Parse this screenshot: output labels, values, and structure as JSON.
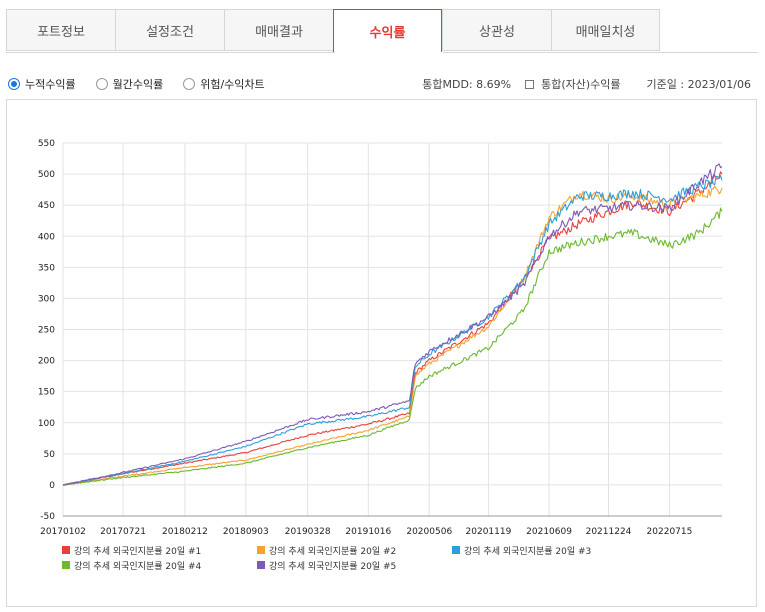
{
  "tabs": [
    {
      "label": "포트정보",
      "active": false
    },
    {
      "label": "설정조건",
      "active": false
    },
    {
      "label": "매매결과",
      "active": false
    },
    {
      "label": "수익률",
      "active": true
    },
    {
      "label": "상관성",
      "active": false
    },
    {
      "label": "매매일치성",
      "active": false
    }
  ],
  "options": {
    "radios": [
      {
        "label": "누적수익률",
        "checked": true
      },
      {
        "label": "월간수익률",
        "checked": false
      },
      {
        "label": "위험/수익차트",
        "checked": false
      }
    ],
    "mdd": "통합MDD: 8.69%",
    "asset_checkbox_label": "통합(자산)수익률",
    "asset_checkbox_checked": false,
    "base_date": "기준일 : 2023/01/06"
  },
  "colors": {
    "accent": "#e8382f",
    "radio": "#1a73e8",
    "series": [
      "#e8413c",
      "#f5a233",
      "#2c9fd9",
      "#6cb92e",
      "#7e5ab5"
    ]
  },
  "chart_data": {
    "type": "line",
    "ylim": [
      -50,
      550
    ],
    "yticks": [
      -50,
      0,
      50,
      100,
      150,
      200,
      250,
      300,
      350,
      400,
      450,
      500,
      550
    ],
    "xticks": [
      "20170102",
      "20170721",
      "20180212",
      "20180903",
      "20190328",
      "20191016",
      "20200506",
      "20201119",
      "20210609",
      "20211224",
      "20220715"
    ],
    "grid": true,
    "legend_position": "bottom",
    "x_points": [
      "20170102",
      "20170721",
      "20180212",
      "20180903",
      "20190328",
      "20191016",
      "20200301",
      "20200320",
      "20200506",
      "20201119",
      "20210315",
      "20210609",
      "20210915",
      "20211224",
      "20220315",
      "20220715",
      "20221020",
      "20230106"
    ],
    "series": [
      {
        "name": "강의 추세 외국인지분률 20일 #1",
        "values": [
          0,
          18,
          35,
          52,
          80,
          98,
          115,
          180,
          200,
          260,
          330,
          395,
          420,
          440,
          455,
          440,
          470,
          500
        ]
      },
      {
        "name": "강의 추세 외국인지분률 20일 #2",
        "values": [
          0,
          14,
          28,
          40,
          65,
          88,
          110,
          175,
          195,
          255,
          330,
          430,
          470,
          460,
          465,
          450,
          465,
          478
        ]
      },
      {
        "name": "강의 추세 외국인지분률 20일 #3",
        "values": [
          0,
          18,
          38,
          62,
          98,
          110,
          125,
          190,
          210,
          270,
          330,
          420,
          465,
          465,
          470,
          460,
          480,
          490
        ]
      },
      {
        "name": "강의 추세 외국인지분률 20일 #4",
        "values": [
          0,
          12,
          22,
          35,
          60,
          80,
          105,
          155,
          175,
          220,
          280,
          375,
          390,
          400,
          405,
          385,
          405,
          440
        ]
      },
      {
        "name": "강의 추세 외국인지분률 20일 #5",
        "values": [
          0,
          20,
          42,
          70,
          105,
          118,
          135,
          195,
          215,
          270,
          320,
          400,
          440,
          445,
          450,
          445,
          485,
          512
        ]
      }
    ]
  }
}
